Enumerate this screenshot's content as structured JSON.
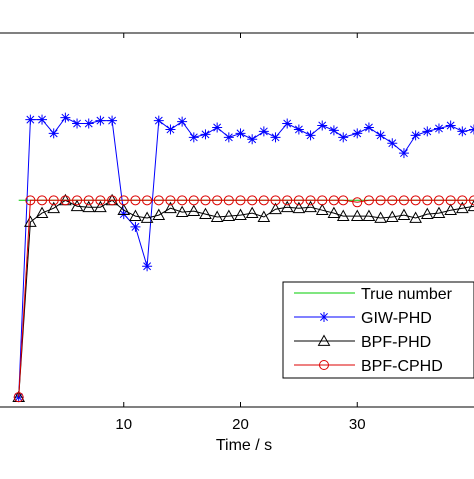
{
  "chart_data": {
    "type": "line",
    "xlabel": "Time / s",
    "ylabel": "",
    "title": "",
    "xlim": [
      -0.6,
      40
    ],
    "ylim": [
      -0.1,
      3.7
    ],
    "grid": false,
    "legend_placement": "bottom-right",
    "x_ticks": [
      10,
      20,
      30
    ],
    "x": [
      1,
      2,
      3,
      4,
      5,
      6,
      7,
      8,
      9,
      10,
      11,
      12,
      13,
      14,
      15,
      16,
      17,
      18,
      19,
      20,
      21,
      22,
      23,
      24,
      25,
      26,
      27,
      28,
      28.8,
      30,
      31,
      32,
      33,
      34,
      35,
      36,
      37,
      38,
      39,
      40
    ],
    "series": [
      {
        "name": "True number",
        "color": "#00cc00",
        "marker": "none",
        "values": [
          2,
          2,
          2,
          2,
          2,
          2,
          2,
          2,
          2,
          2,
          2,
          2,
          2,
          2,
          2,
          2,
          2,
          2,
          2,
          2,
          2,
          2,
          2,
          2,
          2,
          2,
          2,
          2,
          2,
          2,
          2,
          2,
          2,
          2,
          2,
          2,
          2,
          2,
          2,
          2
        ]
      },
      {
        "name": "GIW-PHD",
        "color": "#0000ff",
        "marker": "star",
        "values": [
          0,
          2.82,
          2.82,
          2.68,
          2.84,
          2.78,
          2.78,
          2.81,
          2.81,
          1.86,
          1.73,
          1.33,
          2.81,
          2.72,
          2.8,
          2.64,
          2.67,
          2.74,
          2.64,
          2.68,
          2.62,
          2.7,
          2.64,
          2.78,
          2.72,
          2.66,
          2.76,
          2.71,
          2.64,
          2.68,
          2.74,
          2.66,
          2.58,
          2.48,
          2.66,
          2.7,
          2.73,
          2.76,
          2.7,
          2.72
        ]
      },
      {
        "name": "BPF-PHD",
        "color": "#000000",
        "marker": "triangle",
        "values": [
          0,
          1.78,
          1.87,
          1.92,
          2,
          1.94,
          1.93,
          1.93,
          2,
          1.9,
          1.84,
          1.82,
          1.85,
          1.92,
          1.88,
          1.89,
          1.86,
          1.83,
          1.84,
          1.85,
          1.87,
          1.83,
          1.91,
          1.93,
          1.92,
          1.93,
          1.9,
          1.87,
          1.84,
          1.84,
          1.84,
          1.82,
          1.83,
          1.85,
          1.82,
          1.86,
          1.87,
          1.9,
          1.92,
          1.94
        ]
      },
      {
        "name": "BPF-CPHD",
        "color": "#dd0000",
        "marker": "circle",
        "values": [
          0,
          2,
          2,
          2,
          2,
          2,
          2,
          2,
          2,
          2,
          2,
          2,
          2,
          2,
          2,
          2,
          2,
          2,
          2,
          2,
          2,
          2,
          2,
          2,
          2,
          2,
          2,
          2,
          2,
          1.98,
          2,
          2,
          2,
          2,
          2,
          2,
          2,
          2,
          2,
          2
        ]
      }
    ]
  }
}
